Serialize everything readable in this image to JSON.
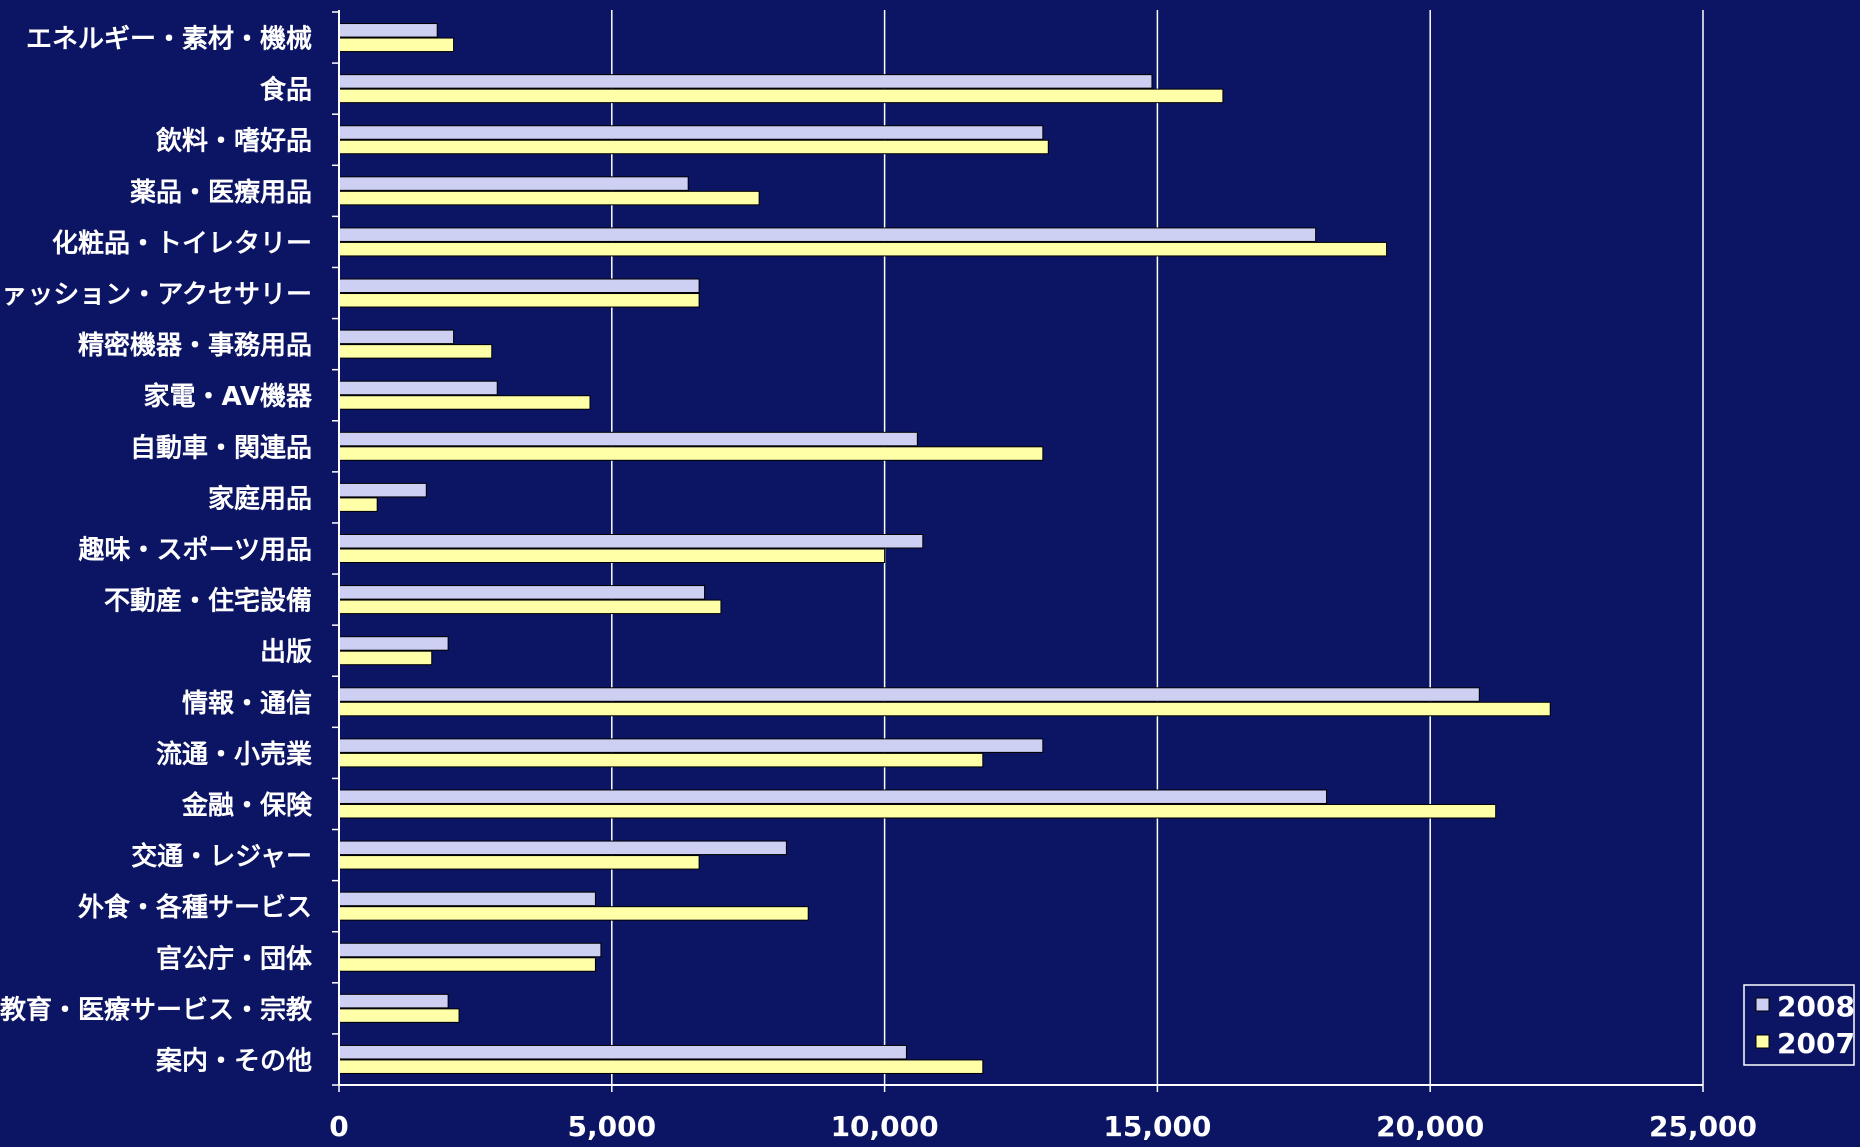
{
  "chart_data": {
    "type": "bar",
    "orientation": "horizontal",
    "title": "",
    "xlabel": "",
    "ylabel": "",
    "xlim": [
      0,
      25000
    ],
    "x_ticks": [
      0,
      5000,
      10000,
      15000,
      20000,
      25000
    ],
    "x_tick_labels": [
      "0",
      "5,000",
      "10,000",
      "15,000",
      "20,000",
      "25,000"
    ],
    "grid": "vertical",
    "legend_position": "bottom-right",
    "categories": [
      "エネルギー・素材・機械",
      "食品",
      "飲料・嗜好品",
      "薬品・医療用品",
      "化粧品・トイレタリー",
      "ファッション・アクセサリー",
      "精密機器・事務用品",
      "家電・AV機器",
      "自動車・関連品",
      "家庭用品",
      "趣味・スポーツ用品",
      "不動産・住宅設備",
      "出版",
      "情報・通信",
      "流通・小売業",
      "金融・保険",
      "交通・レジャー",
      "外食・各種サービス",
      "官公庁・団体",
      "教育・医療サービス・宗教",
      "案内・その他"
    ],
    "series": [
      {
        "name": "2008",
        "color": "#cdd0f2",
        "values": [
          1800,
          14900,
          12900,
          6400,
          17900,
          6600,
          2100,
          2900,
          10600,
          1600,
          10700,
          6700,
          2000,
          20900,
          12900,
          18100,
          8200,
          4700,
          4800,
          2000,
          10400
        ]
      },
      {
        "name": "2007",
        "color": "#ffffa8",
        "values": [
          2100,
          16200,
          13000,
          7700,
          19200,
          6600,
          2800,
          4600,
          12900,
          700,
          10000,
          7000,
          1700,
          22200,
          11800,
          21200,
          6600,
          8600,
          4700,
          2200,
          11800
        ]
      }
    ]
  }
}
